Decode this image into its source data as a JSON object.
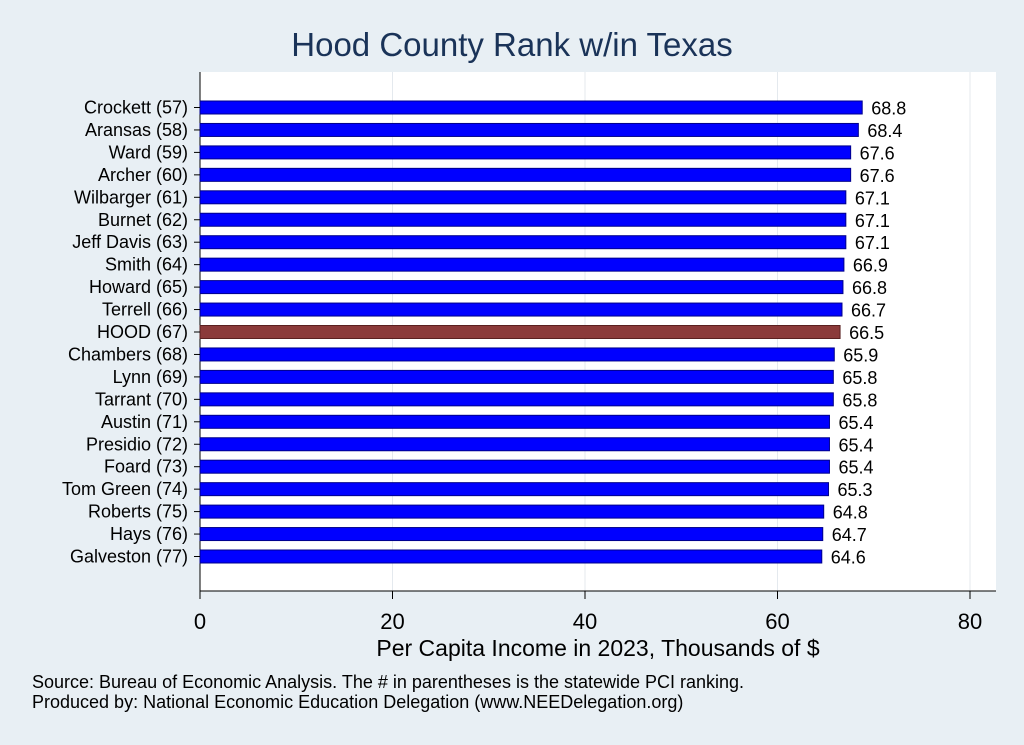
{
  "chart_data": {
    "type": "bar",
    "orientation": "horizontal",
    "title": "Hood County Rank w/in Texas",
    "xlabel": "Per Capita Income in 2023, Thousands of $",
    "xlim": [
      0,
      80
    ],
    "xticks": [
      0,
      20,
      40,
      60,
      80
    ],
    "categories": [
      "Crockett (57)",
      "Aransas (58)",
      "Ward (59)",
      "Archer (60)",
      "Wilbarger (61)",
      "Burnet (62)",
      "Jeff Davis (63)",
      "Smith (64)",
      "Howard (65)",
      "Terrell (66)",
      "HOOD (67)",
      "Chambers (68)",
      "Lynn (69)",
      "Tarrant (70)",
      "Austin (71)",
      "Presidio (72)",
      "Foard (73)",
      "Tom Green (74)",
      "Roberts (75)",
      "Hays (76)",
      "Galveston (77)"
    ],
    "values": [
      68.8,
      68.4,
      67.6,
      67.6,
      67.1,
      67.1,
      67.1,
      66.9,
      66.8,
      66.7,
      66.5,
      65.9,
      65.8,
      65.8,
      65.4,
      65.4,
      65.4,
      65.3,
      64.8,
      64.7,
      64.6
    ],
    "value_labels": [
      "68.8",
      "68.4",
      "67.6",
      "67.6",
      "67.1",
      "67.1",
      "67.1",
      "66.9",
      "66.8",
      "66.7",
      "66.5",
      "65.9",
      "65.8",
      "65.8",
      "65.4",
      "65.4",
      "65.4",
      "65.3",
      "64.8",
      "64.7",
      "64.6"
    ],
    "highlight_category": "HOOD (67)",
    "colors": {
      "bar": "#0000ff",
      "highlight": "#8b3a3a",
      "background": "#e8eff4",
      "plot_background": "#ffffff",
      "title": "#1a3358"
    },
    "grid": true,
    "legend": "none"
  },
  "notes": {
    "source": "Source: Bureau of Economic Analysis. The # in parentheses is the statewide PCI ranking.",
    "producer": "Produced by: National Economic Education Delegation (www.NEEDelegation.org)"
  }
}
